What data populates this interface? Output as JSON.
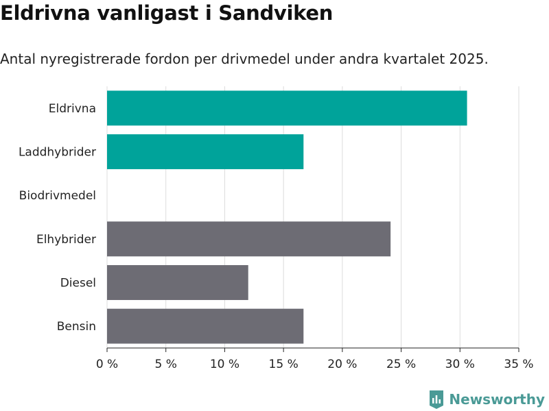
{
  "chart_data": {
    "type": "bar",
    "orientation": "horizontal",
    "title": "Eldrivna vanligast i Sandviken",
    "subtitle": "Antal nyregistrerade fordon per drivmedel under andra kvartalet 2025.",
    "categories": [
      "Eldrivna",
      "Laddhybrider",
      "Biodrivmedel",
      "Elhybrider",
      "Diesel",
      "Bensin"
    ],
    "values": [
      30.6,
      16.7,
      0,
      24.1,
      12.0,
      16.7
    ],
    "bar_colors": [
      "#00a39a",
      "#00a39a",
      "#00a39a",
      "#6d6c74",
      "#6d6c74",
      "#6d6c74"
    ],
    "xlim": [
      0,
      35
    ],
    "x_ticks": [
      0,
      5,
      10,
      15,
      20,
      25,
      30,
      35
    ],
    "x_tick_labels": [
      "0 %",
      "5 %",
      "10 %",
      "15 %",
      "20 %",
      "25 %",
      "30 %",
      "35 %"
    ],
    "grid": true
  },
  "brand": {
    "name": "Newsworthy",
    "icon": "newsworthy-logo-icon",
    "color": "#4a9a96"
  }
}
